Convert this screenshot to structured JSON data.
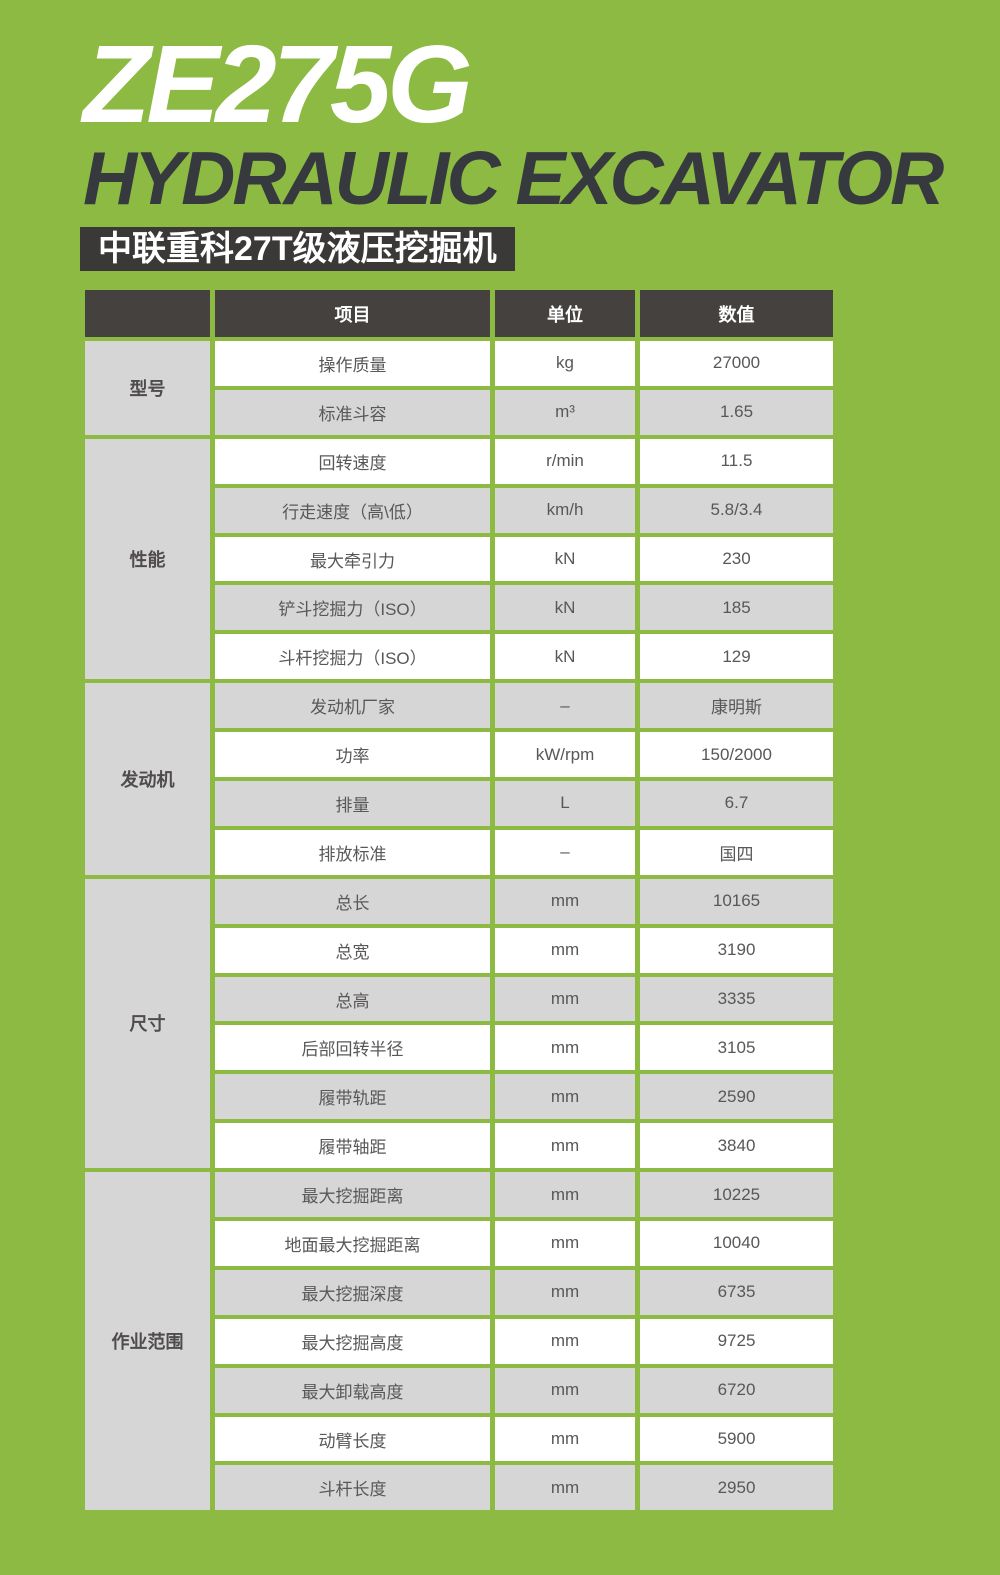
{
  "page": {
    "model": "ZE275G",
    "product_type": "HYDRAULIC EXCAVATOR",
    "subtitle_badge": "中联重科27T级液压挖掘机"
  },
  "colors": {
    "background_green": "#8CBA42",
    "header_dark": "#45413F",
    "badge_dark": "#3A3938",
    "title_dark": "#363A3F",
    "row_gray": "#D6D6D7",
    "row_white": "#FFFFFF",
    "cell_text": "#595757"
  },
  "table": {
    "headers": {
      "item": "项目",
      "unit": "单位",
      "value": "数值"
    },
    "groups": [
      {
        "label": "型号",
        "span": 2
      },
      {
        "label": "性能",
        "span": 5
      },
      {
        "label": "发动机",
        "span": 4
      },
      {
        "label": "尺寸",
        "span": 6
      },
      {
        "label": "作业范围",
        "span": 7
      }
    ],
    "rows": [
      {
        "item": "操作质量",
        "unit": "kg",
        "value": "27000"
      },
      {
        "item": "标准斗容",
        "unit": "m³",
        "value": "1.65"
      },
      {
        "item": "回转速度",
        "unit": "r/min",
        "value": "11.5"
      },
      {
        "item": "行走速度（高\\低）",
        "unit": "km/h",
        "value": "5.8/3.4"
      },
      {
        "item": "最大牵引力",
        "unit": "kN",
        "value": "230"
      },
      {
        "item": "铲斗挖掘力（ISO）",
        "unit": "kN",
        "value": "185"
      },
      {
        "item": "斗杆挖掘力（ISO）",
        "unit": "kN",
        "value": "129"
      },
      {
        "item": "发动机厂家",
        "unit": "–",
        "value": "康明斯"
      },
      {
        "item": "功率",
        "unit": "kW/rpm",
        "value": "150/2000"
      },
      {
        "item": "排量",
        "unit": "L",
        "value": "6.7"
      },
      {
        "item": "排放标准",
        "unit": "–",
        "value": "国四"
      },
      {
        "item": "总长",
        "unit": "mm",
        "value": "10165"
      },
      {
        "item": "总宽",
        "unit": "mm",
        "value": "3190"
      },
      {
        "item": "总高",
        "unit": "mm",
        "value": "3335"
      },
      {
        "item": "后部回转半径",
        "unit": "mm",
        "value": "3105"
      },
      {
        "item": "履带轨距",
        "unit": "mm",
        "value": "2590"
      },
      {
        "item": "履带轴距",
        "unit": "mm",
        "value": "3840"
      },
      {
        "item": "最大挖掘距离",
        "unit": "mm",
        "value": "10225"
      },
      {
        "item": "地面最大挖掘距离",
        "unit": "mm",
        "value": "10040"
      },
      {
        "item": "最大挖掘深度",
        "unit": "mm",
        "value": "6735"
      },
      {
        "item": "最大挖掘高度",
        "unit": "mm",
        "value": "9725"
      },
      {
        "item": "最大卸载高度",
        "unit": "mm",
        "value": "6720"
      },
      {
        "item": "动臂长度",
        "unit": "mm",
        "value": "5900"
      },
      {
        "item": "斗杆长度",
        "unit": "mm",
        "value": "2950"
      }
    ]
  }
}
